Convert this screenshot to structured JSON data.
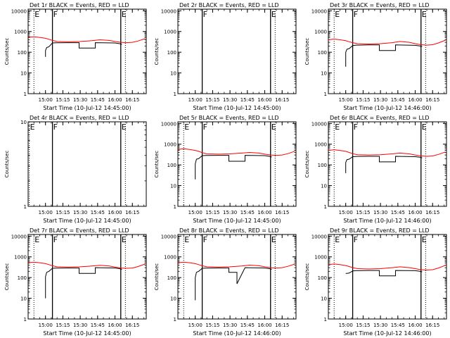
{
  "chart_data": [
    {
      "type": "line",
      "title": "Det 1r BLACK = Events, RED = LLD",
      "xlabel": "Start Time (10-Jul-12 14:45:00)",
      "ylabel": "Counts/sec",
      "yscale": "log",
      "ylim": [
        1,
        12000
      ],
      "yticks": [
        1,
        10,
        100,
        1000,
        10000
      ],
      "ytick_labels": [
        "1",
        "10",
        "100",
        "1000",
        "10000"
      ],
      "xlim": [
        "14:45",
        "16:27"
      ],
      "xticks": [
        "15:00",
        "15:15",
        "15:30",
        "15:45",
        "16:00",
        "16:15"
      ],
      "markers": [
        {
          "time": "14:50",
          "label": "E",
          "style": "dotted"
        },
        {
          "time": "15:06",
          "label": "F",
          "style": "solid"
        },
        {
          "time": "16:05",
          "label": "E",
          "style": "solid"
        },
        {
          "time": "16:09",
          "label": "",
          "style": "dotted"
        }
      ],
      "series": [
        {
          "name": "LLD",
          "color": "#ff0000",
          "x": [
            "14:45",
            "14:50",
            "14:55",
            "15:00",
            "15:03",
            "15:06",
            "15:10",
            "15:20",
            "15:30",
            "15:40",
            "15:47",
            "15:55",
            "16:00",
            "16:05",
            "16:10",
            "16:15",
            "16:20",
            "16:26"
          ],
          "y": [
            530,
            560,
            520,
            470,
            420,
            370,
            330,
            320,
            330,
            360,
            400,
            370,
            330,
            300,
            290,
            300,
            350,
            450
          ]
        },
        {
          "name": "Events",
          "color": "#000000",
          "x": [
            "15:00",
            "15:00",
            "15:01",
            "15:02",
            "15:03",
            "15:06",
            "15:09",
            "15:20",
            "15:29",
            "15:29",
            "15:43",
            "15:43",
            "16:00",
            "16:04",
            "16:06"
          ],
          "y": [
            60,
            120,
            170,
            175,
            185,
            280,
            285,
            290,
            290,
            160,
            160,
            290,
            280,
            260,
            240
          ]
        }
      ]
    },
    {
      "type": "line",
      "title": "Det 2r BLACK = Events, RED = LLD",
      "xlabel": "Start Time (10-Jul-12 14:45:00)",
      "ylabel": "Counts/sec",
      "yscale": "log",
      "ylim": [
        1,
        12000
      ],
      "yticks": [
        1,
        10,
        100,
        1000,
        10000
      ],
      "ytick_labels": [
        "1",
        "10",
        "100",
        "1000",
        "10000"
      ],
      "xlim": [
        "14:45",
        "16:27"
      ],
      "xticks": [
        "15:00",
        "15:15",
        "15:30",
        "15:45",
        "16:00",
        "16:15"
      ],
      "markers": [
        {
          "time": "15:06",
          "label": "F",
          "style": "solid"
        },
        {
          "time": "16:05",
          "label": "E",
          "style": "solid"
        },
        {
          "time": "16:09",
          "label": "",
          "style": "dotted"
        }
      ],
      "series": []
    },
    {
      "type": "line",
      "title": "Det 3r BLACK = Events, RED = LLD",
      "xlabel": "Start Time (10-Jul-12 14:46:00)",
      "ylabel": "Counts/sec",
      "yscale": "log",
      "ylim": [
        1,
        12000
      ],
      "yticks": [
        1,
        10,
        100,
        1000,
        10000
      ],
      "ytick_labels": [
        "1",
        "10",
        "100",
        "1000",
        "10000"
      ],
      "xlim": [
        "14:45",
        "16:27"
      ],
      "xticks": [
        "15:00",
        "15:15",
        "15:30",
        "15:45",
        "16:00",
        "16:15"
      ],
      "markers": [
        {
          "time": "14:50",
          "label": "E",
          "style": "dotted"
        },
        {
          "time": "15:06",
          "label": "F",
          "style": "solid"
        },
        {
          "time": "16:05",
          "label": "E",
          "style": "solid"
        },
        {
          "time": "16:09",
          "label": "",
          "style": "dotted"
        }
      ],
      "series": [
        {
          "name": "LLD",
          "color": "#ff0000",
          "x": [
            "14:45",
            "14:50",
            "14:55",
            "15:00",
            "15:03",
            "15:06",
            "15:10",
            "15:20",
            "15:30",
            "15:40",
            "15:47",
            "15:55",
            "16:00",
            "16:05",
            "16:10",
            "16:15",
            "16:20",
            "16:26"
          ],
          "y": [
            400,
            430,
            400,
            360,
            320,
            290,
            260,
            250,
            260,
            290,
            330,
            300,
            260,
            230,
            220,
            230,
            280,
            380
          ]
        },
        {
          "name": "Events",
          "color": "#000000",
          "x": [
            "15:00",
            "15:00",
            "15:01",
            "15:03",
            "15:06",
            "15:09",
            "15:20",
            "15:29",
            "15:29",
            "15:43",
            "15:43",
            "16:00",
            "16:04",
            "16:06"
          ],
          "y": [
            20,
            100,
            140,
            150,
            210,
            220,
            225,
            225,
            120,
            120,
            225,
            215,
            200,
            190
          ]
        }
      ]
    },
    {
      "type": "line",
      "title": "Det 4r BLACK = Events, RED = LLD",
      "xlabel": "Start Time (10-Jul-12 14:45:00)",
      "ylabel": "Counts/sec",
      "yscale": "log",
      "ylim": [
        1,
        10
      ],
      "yticks": [
        1,
        10
      ],
      "ytick_labels": [
        "1",
        "10"
      ],
      "xlim": [
        "14:45",
        "16:27"
      ],
      "xticks": [
        "15:00",
        "15:15",
        "15:30",
        "15:45",
        "16:00",
        "16:15"
      ],
      "markers": [
        {
          "time": "14:46",
          "label": "E",
          "style": "dotted"
        },
        {
          "time": "15:06",
          "label": "F",
          "style": "solid"
        },
        {
          "time": "16:05",
          "label": "E",
          "style": "solid"
        },
        {
          "time": "16:09",
          "label": "",
          "style": "dotted"
        }
      ],
      "series": []
    },
    {
      "type": "line",
      "title": "Det 5r BLACK = Events, RED = LLD",
      "xlabel": "Start Time (10-Jul-12 14:45:00)",
      "ylabel": "Counts/sec",
      "yscale": "log",
      "ylim": [
        1,
        12000
      ],
      "yticks": [
        1,
        10,
        100,
        1000,
        10000
      ],
      "ytick_labels": [
        "1",
        "10",
        "100",
        "1000",
        "10000"
      ],
      "xlim": [
        "14:45",
        "16:27"
      ],
      "xticks": [
        "15:00",
        "15:15",
        "15:30",
        "15:45",
        "16:00",
        "16:15"
      ],
      "markers": [
        {
          "time": "14:50",
          "label": "E",
          "style": "dotted"
        },
        {
          "time": "15:06",
          "label": "F",
          "style": "solid"
        },
        {
          "time": "16:05",
          "label": "E",
          "style": "solid"
        },
        {
          "time": "16:09",
          "label": "",
          "style": "dotted"
        }
      ],
      "series": [
        {
          "name": "LLD",
          "color": "#ff0000",
          "x": [
            "14:45",
            "14:50",
            "14:55",
            "15:00",
            "15:03",
            "15:06",
            "15:10",
            "15:20",
            "15:30",
            "15:40",
            "15:47",
            "15:55",
            "16:00",
            "16:05",
            "16:10",
            "16:15",
            "16:20",
            "16:26"
          ],
          "y": [
            560,
            600,
            560,
            500,
            450,
            390,
            340,
            330,
            340,
            370,
            400,
            370,
            330,
            300,
            290,
            300,
            350,
            460
          ]
        },
        {
          "name": "Events",
          "color": "#000000",
          "x": [
            "15:00",
            "15:00",
            "15:01",
            "15:03",
            "15:06",
            "15:09",
            "15:20",
            "15:29",
            "15:29",
            "15:43",
            "15:43",
            "16:00",
            "16:04",
            "16:06"
          ],
          "y": [
            20,
            110,
            190,
            200,
            280,
            285,
            290,
            290,
            150,
            150,
            290,
            280,
            260,
            240
          ]
        }
      ]
    },
    {
      "type": "line",
      "title": "Det 6r BLACK = Events, RED = LLD",
      "xlabel": "Start Time (10-Jul-12 14:46:00)",
      "ylabel": "Counts/sec",
      "yscale": "log",
      "ylim": [
        1,
        12000
      ],
      "yticks": [
        1,
        10,
        100,
        1000,
        10000
      ],
      "ytick_labels": [
        "1",
        "10",
        "100",
        "1000",
        "10000"
      ],
      "xlim": [
        "14:45",
        "16:27"
      ],
      "xticks": [
        "15:00",
        "15:15",
        "15:30",
        "15:45",
        "16:00",
        "16:15"
      ],
      "markers": [
        {
          "time": "14:50",
          "label": "E",
          "style": "dotted"
        },
        {
          "time": "15:06",
          "label": "F",
          "style": "solid"
        },
        {
          "time": "16:05",
          "label": "E",
          "style": "solid"
        },
        {
          "time": "16:09",
          "label": "",
          "style": "dotted"
        }
      ],
      "series": [
        {
          "name": "LLD",
          "color": "#ff0000",
          "x": [
            "14:45",
            "14:50",
            "14:55",
            "15:00",
            "15:03",
            "15:06",
            "15:10",
            "15:20",
            "15:30",
            "15:40",
            "15:47",
            "15:55",
            "16:00",
            "16:05",
            "16:10",
            "16:15",
            "16:20",
            "16:26"
          ],
          "y": [
            500,
            540,
            500,
            450,
            400,
            350,
            310,
            300,
            310,
            340,
            370,
            340,
            300,
            270,
            260,
            270,
            320,
            420
          ]
        },
        {
          "name": "Events",
          "color": "#000000",
          "x": [
            "15:00",
            "15:00",
            "15:01",
            "15:03",
            "15:06",
            "15:09",
            "15:20",
            "15:29",
            "15:29",
            "15:43",
            "15:43",
            "16:00",
            "16:04",
            "16:06"
          ],
          "y": [
            40,
            130,
            180,
            190,
            250,
            255,
            260,
            260,
            140,
            140,
            260,
            250,
            235,
            220
          ]
        }
      ]
    },
    {
      "type": "line",
      "title": "Det 7r BLACK = Events, RED = LLD",
      "xlabel": "Start Time (10-Jul-12 14:45:00)",
      "ylabel": "Counts/sec",
      "yscale": "log",
      "ylim": [
        1,
        12000
      ],
      "yticks": [
        1,
        10,
        100,
        1000,
        10000
      ],
      "ytick_labels": [
        "1",
        "10",
        "100",
        "1000",
        "10000"
      ],
      "xlim": [
        "14:45",
        "16:27"
      ],
      "xticks": [
        "15:00",
        "15:15",
        "15:30",
        "15:45",
        "16:00",
        "16:15"
      ],
      "markers": [
        {
          "time": "14:50",
          "label": "E",
          "style": "dotted"
        },
        {
          "time": "15:06",
          "label": "F",
          "style": "solid"
        },
        {
          "time": "16:05",
          "label": "E",
          "style": "solid"
        },
        {
          "time": "16:09",
          "label": "",
          "style": "dotted"
        }
      ],
      "series": [
        {
          "name": "LLD",
          "color": "#ff0000",
          "x": [
            "14:45",
            "14:50",
            "14:55",
            "15:00",
            "15:03",
            "15:06",
            "15:10",
            "15:20",
            "15:30",
            "15:40",
            "15:47",
            "15:55",
            "16:00",
            "16:05",
            "16:10",
            "16:15",
            "16:20",
            "16:26"
          ],
          "y": [
            520,
            560,
            520,
            470,
            420,
            370,
            330,
            320,
            330,
            360,
            390,
            360,
            320,
            290,
            280,
            290,
            340,
            450
          ]
        },
        {
          "name": "Events",
          "color": "#000000",
          "x": [
            "15:00",
            "15:00",
            "15:01",
            "15:03",
            "15:06",
            "15:09",
            "15:20",
            "15:29",
            "15:29",
            "15:43",
            "15:43",
            "16:00",
            "16:04",
            "16:06"
          ],
          "y": [
            10,
            110,
            180,
            200,
            280,
            285,
            290,
            290,
            160,
            160,
            300,
            290,
            270,
            250
          ]
        }
      ]
    },
    {
      "type": "line",
      "title": "Det 8r BLACK = Events, RED = LLD",
      "xlabel": "Start Time (10-Jul-12 14:46:00)",
      "ylabel": "Counts/sec",
      "yscale": "log",
      "ylim": [
        1,
        12000
      ],
      "yticks": [
        1,
        10,
        100,
        1000,
        10000
      ],
      "ytick_labels": [
        "1",
        "10",
        "100",
        "1000",
        "10000"
      ],
      "xlim": [
        "14:45",
        "16:27"
      ],
      "xticks": [
        "15:00",
        "15:15",
        "15:30",
        "15:45",
        "16:00",
        "16:15"
      ],
      "markers": [
        {
          "time": "14:50",
          "label": "E",
          "style": "dotted"
        },
        {
          "time": "15:06",
          "label": "F",
          "style": "solid"
        },
        {
          "time": "16:05",
          "label": "E",
          "style": "solid"
        },
        {
          "time": "16:09",
          "label": "",
          "style": "dotted"
        }
      ],
      "series": [
        {
          "name": "LLD",
          "color": "#ff0000",
          "x": [
            "14:45",
            "14:50",
            "14:55",
            "15:00",
            "15:03",
            "15:06",
            "15:10",
            "15:20",
            "15:30",
            "15:40",
            "15:47",
            "15:55",
            "16:00",
            "16:05",
            "16:10",
            "16:15",
            "16:20",
            "16:26"
          ],
          "y": [
            520,
            560,
            520,
            470,
            420,
            370,
            330,
            320,
            330,
            360,
            400,
            370,
            330,
            300,
            290,
            300,
            350,
            450
          ]
        },
        {
          "name": "Events",
          "color": "#000000",
          "x": [
            "15:00",
            "15:00",
            "15:01",
            "15:03",
            "15:06",
            "15:09",
            "15:20",
            "15:29",
            "15:29",
            "15:36",
            "15:36",
            "15:43",
            "15:43",
            "16:00",
            "16:04",
            "16:06"
          ],
          "y": [
            8,
            100,
            180,
            200,
            280,
            285,
            290,
            290,
            180,
            180,
            50,
            300,
            300,
            290,
            270,
            250
          ]
        }
      ]
    },
    {
      "type": "line",
      "title": "Det 9r BLACK = Events, RED = LLD",
      "xlabel": "Start Time (10-Jul-12 14:46:00)",
      "ylabel": "Counts/sec",
      "yscale": "log",
      "ylim": [
        1,
        12000
      ],
      "yticks": [
        1,
        10,
        100,
        1000,
        10000
      ],
      "ytick_labels": [
        "1",
        "10",
        "100",
        "1000",
        "10000"
      ],
      "xlim": [
        "14:45",
        "16:27"
      ],
      "xticks": [
        "15:00",
        "15:15",
        "15:30",
        "15:45",
        "16:00",
        "16:15"
      ],
      "markers": [
        {
          "time": "14:50",
          "label": "E",
          "style": "dotted"
        },
        {
          "time": "15:06",
          "label": "F",
          "style": "solid"
        },
        {
          "time": "16:05",
          "label": "E",
          "style": "solid"
        },
        {
          "time": "16:09",
          "label": "",
          "style": "dotted"
        }
      ],
      "series": [
        {
          "name": "LLD",
          "color": "#ff0000",
          "x": [
            "14:45",
            "14:50",
            "14:55",
            "15:00",
            "15:03",
            "15:06",
            "15:10",
            "15:20",
            "15:30",
            "15:40",
            "15:47",
            "15:55",
            "16:00",
            "16:05",
            "16:10",
            "16:15",
            "16:20",
            "16:26"
          ],
          "y": [
            420,
            450,
            420,
            380,
            340,
            300,
            270,
            260,
            270,
            300,
            330,
            300,
            270,
            240,
            230,
            240,
            290,
            390
          ]
        },
        {
          "name": "Events",
          "color": "#000000",
          "x": [
            "15:00",
            "15:01",
            "15:03",
            "15:06",
            "15:09",
            "15:20",
            "15:29",
            "15:29",
            "15:43",
            "15:43",
            "16:00",
            "16:04",
            "16:06"
          ],
          "y": [
            160,
            160,
            165,
            210,
            215,
            220,
            220,
            120,
            120,
            220,
            215,
            200,
            190
          ]
        }
      ]
    }
  ]
}
